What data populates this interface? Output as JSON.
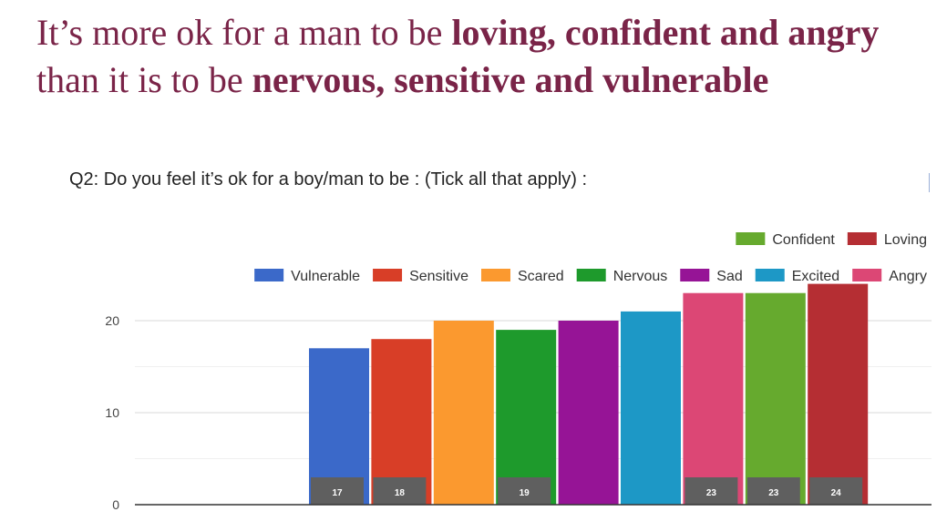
{
  "headline": {
    "line1_plain": "It’s more ok for a man to be ",
    "line1_bold": "loving, confident and angry",
    "line2_plain": "than it is to be ",
    "line2_bold": "nervous, sensitive and vulnerable"
  },
  "chart_data": {
    "type": "bar",
    "title": "Q2: Do you feel it’s ok for a boy/man to be : (Tick all that apply) :",
    "xlabel": "",
    "ylabel": "",
    "ylim": [
      0,
      24
    ],
    "yticks": [
      0,
      10,
      20
    ],
    "grid": true,
    "legend_position": "top-right",
    "series": [
      {
        "name": "Vulnerable",
        "value": 17,
        "color": "#3b69c9",
        "show_label": true
      },
      {
        "name": "Sensitive",
        "value": 18,
        "color": "#d83e27",
        "show_label": true
      },
      {
        "name": "Scared",
        "value": 20,
        "color": "#fb992f",
        "show_label": false
      },
      {
        "name": "Nervous",
        "value": 19,
        "color": "#1e9a2c",
        "show_label": true
      },
      {
        "name": "Sad",
        "value": 20,
        "color": "#961496",
        "show_label": false
      },
      {
        "name": "Excited",
        "value": 21,
        "color": "#1d98c6",
        "show_label": false
      },
      {
        "name": "Angry",
        "value": 23,
        "color": "#dc4775",
        "show_label": true
      },
      {
        "name": "Confident",
        "value": 23,
        "color": "#66aa2e",
        "show_label": true
      },
      {
        "name": "Loving",
        "value": 24,
        "color": "#b52e33",
        "show_label": true
      }
    ],
    "legend_rows": [
      [
        "Confident",
        "Loving"
      ],
      [
        "Vulnerable",
        "Sensitive",
        "Scared",
        "Nervous",
        "Sad",
        "Excited",
        "Angry"
      ]
    ]
  }
}
